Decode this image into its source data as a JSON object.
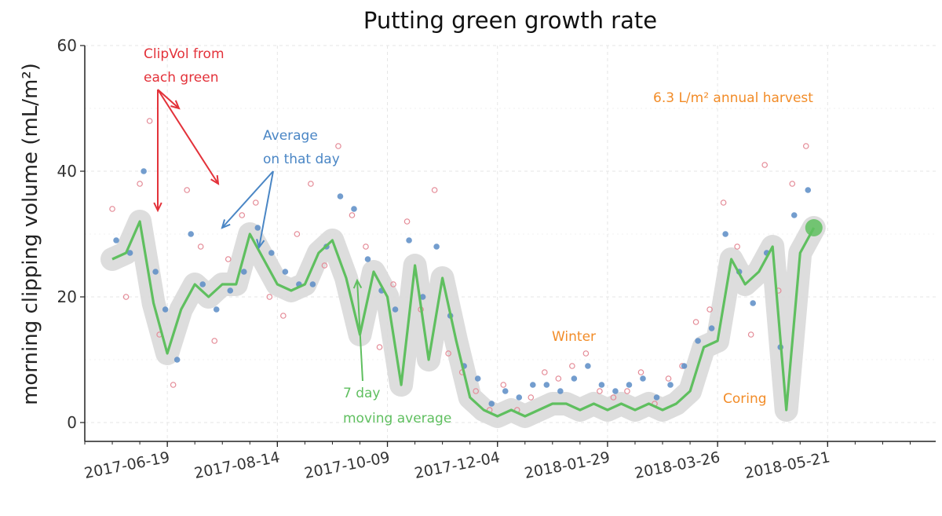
{
  "chart_data": {
    "type": "scatter",
    "title": "Putting green growth rate",
    "ylabel": "morning clipping volume (mL/m²)",
    "xlabel": "",
    "ylim": [
      -3,
      60
    ],
    "yticks": [
      0,
      20,
      40,
      60
    ],
    "x_date_range": [
      "2017-05-08",
      "2018-07-15"
    ],
    "xticks": [
      "2017-06-19",
      "2017-08-14",
      "2017-10-09",
      "2017-12-04",
      "2018-01-29",
      "2018-03-26",
      "2018-05-21"
    ],
    "grid": true,
    "colors": {
      "clipvol": "#e48a96",
      "average": "#5b8cc6",
      "moving_avg": "#5fbf5f",
      "band": "#d9d9d9",
      "annotation_red": "#e3323a",
      "annotation_blue": "#4a86c5",
      "annotation_orange": "#f28c28"
    },
    "series": [
      {
        "name": "7 day moving average",
        "kind": "line",
        "x": [
          "2017-05-22",
          "2017-05-29",
          "2017-06-05",
          "2017-06-12",
          "2017-06-19",
          "2017-06-26",
          "2017-07-03",
          "2017-07-10",
          "2017-07-17",
          "2017-07-24",
          "2017-07-31",
          "2017-08-07",
          "2017-08-14",
          "2017-08-21",
          "2017-08-28",
          "2017-09-04",
          "2017-09-11",
          "2017-09-18",
          "2017-09-25",
          "2017-10-02",
          "2017-10-09",
          "2017-10-16",
          "2017-10-23",
          "2017-10-30",
          "2017-11-06",
          "2017-11-13",
          "2017-11-20",
          "2017-11-27",
          "2017-12-04",
          "2017-12-11",
          "2017-12-18",
          "2017-12-25",
          "2018-01-01",
          "2018-01-08",
          "2018-01-15",
          "2018-01-22",
          "2018-01-29",
          "2018-02-05",
          "2018-02-12",
          "2018-02-19",
          "2018-02-26",
          "2018-03-05",
          "2018-03-12",
          "2018-03-19",
          "2018-03-26",
          "2018-04-02",
          "2018-04-09",
          "2018-04-16",
          "2018-04-23",
          "2018-04-30",
          "2018-05-07",
          "2018-05-14"
        ],
        "y": [
          26,
          27,
          32,
          19,
          11,
          18,
          22,
          20,
          22,
          22,
          30,
          26,
          22,
          21,
          22,
          27,
          29,
          23,
          14,
          24,
          20,
          6,
          25,
          10,
          23,
          13,
          4,
          2,
          1,
          2,
          1,
          2,
          3,
          3,
          2,
          3,
          2,
          3,
          2,
          3,
          2,
          3,
          5,
          12,
          13,
          26,
          22,
          24,
          28,
          2,
          27,
          31
        ]
      },
      {
        "name": "Average on that day",
        "kind": "scatter",
        "x": [
          "2017-05-24",
          "2017-05-31",
          "2017-06-07",
          "2017-06-13",
          "2017-06-18",
          "2017-06-24",
          "2017-07-01",
          "2017-07-07",
          "2017-07-14",
          "2017-07-21",
          "2017-07-28",
          "2017-08-04",
          "2017-08-11",
          "2017-08-18",
          "2017-08-25",
          "2017-09-01",
          "2017-09-08",
          "2017-09-15",
          "2017-09-22",
          "2017-09-29",
          "2017-10-06",
          "2017-10-13",
          "2017-10-20",
          "2017-10-27",
          "2017-11-03",
          "2017-11-10",
          "2017-11-17",
          "2017-11-24",
          "2017-12-01",
          "2017-12-08",
          "2017-12-15",
          "2017-12-22",
          "2017-12-29",
          "2018-01-05",
          "2018-01-12",
          "2018-01-19",
          "2018-01-26",
          "2018-02-02",
          "2018-02-09",
          "2018-02-16",
          "2018-02-23",
          "2018-03-02",
          "2018-03-09",
          "2018-03-16",
          "2018-03-23",
          "2018-03-30",
          "2018-04-06",
          "2018-04-13",
          "2018-04-20",
          "2018-04-27",
          "2018-05-04",
          "2018-05-11"
        ],
        "y": [
          29,
          27,
          40,
          24,
          18,
          10,
          30,
          22,
          18,
          21,
          24,
          31,
          27,
          24,
          22,
          22,
          28,
          36,
          34,
          26,
          21,
          18,
          29,
          20,
          28,
          17,
          9,
          7,
          3,
          5,
          4,
          6,
          6,
          5,
          7,
          9,
          6,
          5,
          6,
          7,
          4,
          6,
          9,
          13,
          15,
          30,
          24,
          19,
          27,
          12,
          33,
          37
        ]
      },
      {
        "name": "ClipVol from each green",
        "kind": "scatter",
        "x": [
          "2017-05-22",
          "2017-05-29",
          "2017-06-05",
          "2017-06-10",
          "2017-06-15",
          "2017-06-22",
          "2017-06-29",
          "2017-07-06",
          "2017-07-13",
          "2017-07-20",
          "2017-07-27",
          "2017-08-03",
          "2017-08-10",
          "2017-08-17",
          "2017-08-24",
          "2017-08-31",
          "2017-09-07",
          "2017-09-14",
          "2017-09-21",
          "2017-09-28",
          "2017-10-05",
          "2017-10-12",
          "2017-10-19",
          "2017-10-26",
          "2017-11-02",
          "2017-11-09",
          "2017-11-16",
          "2017-11-23",
          "2017-11-30",
          "2017-12-07",
          "2017-12-14",
          "2017-12-21",
          "2017-12-28",
          "2018-01-04",
          "2018-01-11",
          "2018-01-18",
          "2018-01-25",
          "2018-02-01",
          "2018-02-08",
          "2018-02-15",
          "2018-02-22",
          "2018-03-01",
          "2018-03-08",
          "2018-03-15",
          "2018-03-22",
          "2018-03-29",
          "2018-04-05",
          "2018-04-12",
          "2018-04-19",
          "2018-04-26",
          "2018-05-03",
          "2018-05-10"
        ],
        "y": [
          34,
          20,
          38,
          48,
          14,
          6,
          37,
          28,
          13,
          26,
          33,
          35,
          20,
          17,
          30,
          38,
          25,
          44,
          33,
          28,
          12,
          22,
          32,
          18,
          37,
          11,
          8,
          5,
          2,
          6,
          2,
          4,
          8,
          7,
          9,
          11,
          5,
          4,
          5,
          8,
          3,
          7,
          9,
          16,
          18,
          35,
          28,
          14,
          41,
          21,
          38,
          44
        ]
      }
    ],
    "annotations": {
      "clipvol": [
        "ClipVol from",
        "each green"
      ],
      "average": [
        "Average",
        "on that day"
      ],
      "moving_average": [
        "7 day",
        "moving average"
      ],
      "annual_harvest": "6.3 L/m² annual harvest",
      "winter": "Winter",
      "coring": "Coring"
    }
  }
}
